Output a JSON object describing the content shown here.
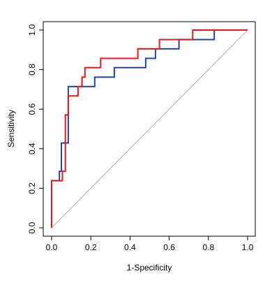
{
  "chart_data": {
    "type": "line",
    "title": "",
    "xlabel": "1-Specificity",
    "ylabel": "Sensitivity",
    "xlim": [
      0,
      1
    ],
    "ylim": [
      0,
      1
    ],
    "grid": false,
    "legend": "none",
    "x_ticks": [
      {
        "value": 0.0,
        "label": "0.0"
      },
      {
        "value": 0.2,
        "label": "0.2"
      },
      {
        "value": 0.4,
        "label": "0.4"
      },
      {
        "value": 0.6,
        "label": "0.6"
      },
      {
        "value": 0.8,
        "label": "0.8"
      },
      {
        "value": 1.0,
        "label": "1.0"
      }
    ],
    "y_ticks": [
      {
        "value": 0.0,
        "label": "0.0"
      },
      {
        "value": 0.2,
        "label": "0.2"
      },
      {
        "value": 0.4,
        "label": "0.4"
      },
      {
        "value": 0.6,
        "label": "0.6"
      },
      {
        "value": 0.8,
        "label": "0.8"
      },
      {
        "value": 1.0,
        "label": "1.0"
      }
    ],
    "reference_line": {
      "color": "#999999",
      "points": [
        [
          0,
          0
        ],
        [
          1,
          1
        ]
      ]
    },
    "series": [
      {
        "color": "#2244aa",
        "points": [
          [
            0.0,
            0.0
          ],
          [
            0.0,
            0.238
          ],
          [
            0.04,
            0.238
          ],
          [
            0.04,
            0.286
          ],
          [
            0.05,
            0.286
          ],
          [
            0.05,
            0.429
          ],
          [
            0.085,
            0.429
          ],
          [
            0.085,
            0.714
          ],
          [
            0.22,
            0.714
          ],
          [
            0.22,
            0.762
          ],
          [
            0.32,
            0.762
          ],
          [
            0.32,
            0.81
          ],
          [
            0.48,
            0.81
          ],
          [
            0.48,
            0.857
          ],
          [
            0.53,
            0.857
          ],
          [
            0.53,
            0.905
          ],
          [
            0.65,
            0.905
          ],
          [
            0.65,
            0.952
          ],
          [
            0.83,
            0.952
          ],
          [
            0.83,
            1.0
          ],
          [
            1.0,
            1.0
          ]
        ]
      },
      {
        "color": "#e8191c",
        "points": [
          [
            0.0,
            0.0
          ],
          [
            0.0,
            0.238
          ],
          [
            0.055,
            0.238
          ],
          [
            0.055,
            0.286
          ],
          [
            0.07,
            0.286
          ],
          [
            0.07,
            0.571
          ],
          [
            0.085,
            0.571
          ],
          [
            0.085,
            0.667
          ],
          [
            0.135,
            0.667
          ],
          [
            0.135,
            0.714
          ],
          [
            0.155,
            0.714
          ],
          [
            0.155,
            0.762
          ],
          [
            0.17,
            0.762
          ],
          [
            0.17,
            0.81
          ],
          [
            0.25,
            0.81
          ],
          [
            0.25,
            0.857
          ],
          [
            0.44,
            0.857
          ],
          [
            0.44,
            0.905
          ],
          [
            0.55,
            0.905
          ],
          [
            0.55,
            0.952
          ],
          [
            0.72,
            0.952
          ],
          [
            0.72,
            1.0
          ],
          [
            1.0,
            1.0
          ]
        ]
      }
    ]
  }
}
